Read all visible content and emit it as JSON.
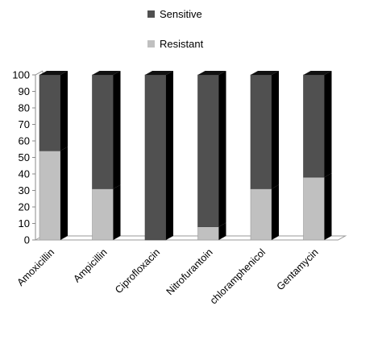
{
  "chart_data": {
    "type": "bar",
    "stacked": true,
    "three_d": true,
    "categories": [
      "Amoxicillin",
      "Ampicillin",
      "Ciprofloxacin",
      "Nitrofurantoin",
      "chloramphenicol",
      "Gentamycin"
    ],
    "series": [
      {
        "name": "Resistant",
        "color": "#c0c0c0",
        "values": [
          54,
          31,
          0,
          8,
          31,
          38
        ]
      },
      {
        "name": "Sensitive",
        "color": "#505050",
        "values": [
          46,
          69,
          100,
          92,
          69,
          62
        ]
      }
    ],
    "legend_order": [
      "Sensitive",
      "Resistant"
    ],
    "legend_position": "top-center",
    "ylim": [
      0,
      100
    ],
    "yticks": [
      0,
      10,
      20,
      30,
      40,
      50,
      60,
      70,
      80,
      90,
      100
    ],
    "grid": false,
    "title": "",
    "xlabel": "",
    "ylabel": ""
  }
}
